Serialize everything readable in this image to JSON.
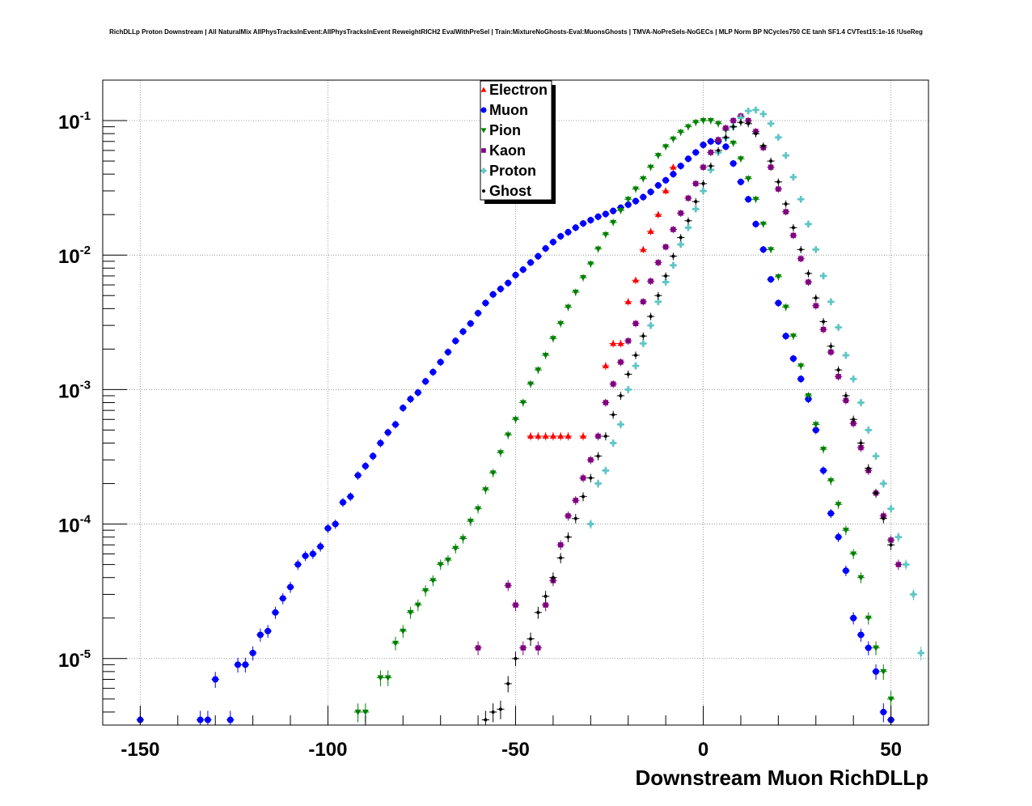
{
  "chart_data": {
    "type": "scatter",
    "title": "RichDLLp Proton Downstream | All NaturalMix AllPhysTracksInEvent:AllPhysTracksInEvent ReweightRICH2 EvalWithPreSel | Train:MixtureNoGhosts-Eval:MuonsGhosts | TMVA-NoPreSels-NoGECs | MLP Norm BP NCycles750 CE tanh SF1.4 CVTest15:1e-16 !UseReg",
    "xlabel": "Downstream Muon RichDLLp",
    "ylabel": "",
    "xlim": [
      -160,
      60
    ],
    "ylim": [
      3.2e-06,
      0.2
    ],
    "y_scale": "log",
    "grid": true,
    "legend_position": "top-center",
    "x_ticks": [
      {
        "value": -150,
        "label": "-150"
      },
      {
        "value": -100,
        "label": "-100"
      },
      {
        "value": -50,
        "label": "-50"
      },
      {
        "value": 0,
        "label": "0"
      },
      {
        "value": 50,
        "label": "50"
      }
    ],
    "y_ticks": [
      {
        "value": 1e-05,
        "base": "10",
        "exp": "-5"
      },
      {
        "value": 0.0001,
        "base": "10",
        "exp": "-4"
      },
      {
        "value": 0.001,
        "base": "10",
        "exp": "-3"
      },
      {
        "value": 0.01,
        "base": "10",
        "exp": "-2"
      },
      {
        "value": 0.1,
        "base": "10",
        "exp": "-1"
      }
    ],
    "series": [
      {
        "name": "Electron",
        "color": "#ff0000",
        "marker": "triangle-up",
        "x": [
          -46,
          -44,
          -42,
          -40,
          -38,
          -36,
          -32,
          -26,
          -24,
          -22,
          -20,
          -18,
          -16,
          -14,
          -12,
          -10,
          -8
        ],
        "y": [
          0.00045,
          0.00045,
          0.00045,
          0.00045,
          0.00045,
          0.00045,
          0.00045,
          0.0015,
          0.0022,
          0.0022,
          0.0045,
          0.0065,
          0.011,
          0.015,
          0.02,
          0.03,
          0.045
        ]
      },
      {
        "name": "Muon",
        "color": "#0000ff",
        "marker": "circle",
        "x": [
          -150,
          -134,
          -132,
          -130,
          -126,
          -124,
          -122,
          -120,
          -118,
          -116,
          -114,
          -112,
          -110,
          -108,
          -106,
          -104,
          -102,
          -100,
          -98,
          -96,
          -94,
          -92,
          -90,
          -88,
          -86,
          -84,
          -82,
          -80,
          -78,
          -76,
          -74,
          -72,
          -70,
          -68,
          -66,
          -64,
          -62,
          -60,
          -58,
          -56,
          -54,
          -52,
          -50,
          -48,
          -46,
          -44,
          -42,
          -40,
          -38,
          -36,
          -34,
          -32,
          -30,
          -28,
          -26,
          -24,
          -22,
          -20,
          -18,
          -16,
          -14,
          -12,
          -10,
          -8,
          -6,
          -4,
          -2,
          0,
          2,
          4,
          6,
          8,
          10,
          12,
          14,
          16,
          18,
          20,
          22,
          24,
          26,
          28,
          30,
          32,
          34,
          36,
          38,
          40,
          42,
          44,
          46,
          48,
          50
        ],
        "y": [
          3.5e-06,
          3.5e-06,
          3.5e-06,
          7e-06,
          3.5e-06,
          9e-06,
          9e-06,
          1.1e-05,
          1.5e-05,
          1.6e-05,
          2.2e-05,
          2.8e-05,
          3.4e-05,
          5e-05,
          5.8e-05,
          6e-05,
          6.8e-05,
          9.3e-05,
          0.0001,
          0.000145,
          0.00016,
          0.00023,
          0.00027,
          0.00032,
          0.0004,
          0.00048,
          0.00055,
          0.00073,
          0.00085,
          0.00095,
          0.00115,
          0.00135,
          0.0016,
          0.0019,
          0.0023,
          0.0027,
          0.0031,
          0.0037,
          0.0044,
          0.0051,
          0.0056,
          0.0062,
          0.0071,
          0.0078,
          0.0088,
          0.0098,
          0.0112,
          0.0125,
          0.0138,
          0.0148,
          0.016,
          0.0172,
          0.0182,
          0.0193,
          0.0202,
          0.0213,
          0.0225,
          0.0237,
          0.0252,
          0.027,
          0.0295,
          0.033,
          0.036,
          0.04,
          0.046,
          0.052,
          0.058,
          0.066,
          0.07,
          0.07,
          0.064,
          0.048,
          0.035,
          0.026,
          0.017,
          0.011,
          0.0066,
          0.0044,
          0.0025,
          0.0017,
          0.0012,
          0.00085,
          0.0005,
          0.00025,
          0.00012,
          8e-05,
          4.5e-05,
          2e-05,
          1.5e-05,
          1.2e-05,
          8e-06,
          4e-06,
          3.5e-06
        ]
      },
      {
        "name": "Pion",
        "color": "#008000",
        "marker": "triangle-down",
        "x": [
          -92,
          -90,
          -86,
          -84,
          -82,
          -80,
          -78,
          -76,
          -74,
          -72,
          -70,
          -68,
          -66,
          -64,
          -62,
          -60,
          -58,
          -56,
          -54,
          -52,
          -50,
          -48,
          -46,
          -44,
          -42,
          -40,
          -38,
          -36,
          -34,
          -32,
          -30,
          -28,
          -26,
          -24,
          -22,
          -20,
          -18,
          -16,
          -14,
          -12,
          -10,
          -8,
          -6,
          -4,
          -2,
          0,
          2,
          4,
          6,
          8,
          10,
          12,
          14,
          16,
          18,
          20,
          22,
          24,
          26,
          28,
          30,
          32,
          34,
          36,
          38,
          40,
          42,
          44,
          46,
          48,
          50
        ],
        "y": [
          4e-06,
          4e-06,
          7.2e-06,
          7.2e-06,
          1.3e-05,
          1.6e-05,
          2.2e-05,
          2.5e-05,
          3.2e-05,
          3.8e-05,
          5e-05,
          5.4e-05,
          6.6e-05,
          7.8e-05,
          0.000105,
          0.00013,
          0.00018,
          0.00024,
          0.00034,
          0.00046,
          0.0006,
          0.0008,
          0.0011,
          0.0014,
          0.0018,
          0.0024,
          0.0031,
          0.0041,
          0.0053,
          0.0068,
          0.0086,
          0.0111,
          0.0142,
          0.0175,
          0.0215,
          0.026,
          0.031,
          0.037,
          0.045,
          0.055,
          0.064,
          0.073,
          0.082,
          0.09,
          0.097,
          0.1,
          0.1,
          0.095,
          0.085,
          0.068,
          0.052,
          0.037,
          0.026,
          0.017,
          0.011,
          0.0069,
          0.0041,
          0.0025,
          0.0015,
          0.0009,
          0.00055,
          0.00036,
          0.00021,
          0.00014,
          9e-05,
          6e-05,
          4e-05,
          2e-05,
          1.2e-05,
          8e-06,
          5e-06
        ]
      },
      {
        "name": "Kaon",
        "color": "#800080",
        "marker": "square",
        "x": [
          -60,
          -52,
          -50,
          -48,
          -44,
          -42,
          -40,
          -38,
          -36,
          -34,
          -32,
          -30,
          -28,
          -26,
          -24,
          -22,
          -20,
          -18,
          -16,
          -14,
          -12,
          -10,
          -8,
          -6,
          -4,
          -2,
          0,
          2,
          4,
          6,
          8,
          10,
          12,
          14,
          16,
          18,
          20,
          22,
          24,
          26,
          28,
          30,
          32,
          34,
          36,
          38,
          40,
          42,
          44,
          46,
          48,
          50,
          52
        ],
        "y": [
          1.2e-05,
          3.5e-05,
          2.5e-05,
          1.2e-05,
          1.2e-05,
          2.5e-05,
          3.8e-05,
          7e-05,
          0.000115,
          0.00015,
          0.00022,
          0.0003,
          0.00045,
          0.0008,
          0.0011,
          0.0016,
          0.0023,
          0.0031,
          0.0045,
          0.0064,
          0.0088,
          0.0115,
          0.0155,
          0.0205,
          0.0265,
          0.034,
          0.045,
          0.058,
          0.072,
          0.088,
          0.1,
          0.108,
          0.1,
          0.083,
          0.063,
          0.045,
          0.031,
          0.021,
          0.014,
          0.0094,
          0.0063,
          0.0042,
          0.0028,
          0.0019,
          0.00125,
          0.00083,
          0.00056,
          0.00037,
          0.00025,
          0.00017,
          0.000115,
          7.6e-05,
          5e-05
        ]
      },
      {
        "name": "Proton",
        "color": "#5fc5c5",
        "marker": "cross",
        "x": [
          -30,
          -28,
          -26,
          -24,
          -22,
          -20,
          -18,
          -16,
          -14,
          -12,
          -10,
          -8,
          -6,
          -4,
          -2,
          0,
          2,
          4,
          6,
          8,
          10,
          12,
          14,
          16,
          18,
          20,
          22,
          24,
          26,
          28,
          30,
          32,
          34,
          36,
          38,
          40,
          42,
          44,
          46,
          48,
          50,
          52,
          54,
          56,
          58
        ],
        "y": [
          0.0001,
          0.0002,
          0.00025,
          0.0004,
          0.00055,
          0.001,
          0.0015,
          0.0022,
          0.003,
          0.0045,
          0.0063,
          0.0084,
          0.012,
          0.016,
          0.022,
          0.03,
          0.043,
          0.058,
          0.074,
          0.09,
          0.105,
          0.118,
          0.12,
          0.112,
          0.095,
          0.075,
          0.055,
          0.038,
          0.026,
          0.017,
          0.011,
          0.007,
          0.0045,
          0.0029,
          0.0018,
          0.0012,
          0.0008,
          0.0005,
          0.00032,
          0.0002,
          0.00013,
          8e-05,
          5e-05,
          3e-05,
          1.1e-05
        ]
      },
      {
        "name": "Ghost",
        "color": "#000000",
        "marker": "small-circle",
        "x": [
          -58,
          -56,
          -54,
          -52,
          -50,
          -46,
          -44,
          -42,
          -40,
          -38,
          -36,
          -34,
          -32,
          -30,
          -28,
          -26,
          -24,
          -22,
          -20,
          -18,
          -16,
          -14,
          -12,
          -10,
          -8,
          -6,
          -4,
          -2,
          0,
          2,
          4,
          6,
          8,
          10,
          12,
          14,
          16,
          18,
          20,
          22,
          24,
          26,
          28,
          30,
          32,
          34,
          36,
          38,
          40,
          42,
          44,
          46,
          48,
          50
        ],
        "y": [
          3.5e-06,
          4e-06,
          4.2e-06,
          6.5e-06,
          1e-05,
          1.4e-05,
          2.2e-05,
          2.9e-05,
          4e-05,
          5.6e-05,
          8e-05,
          0.00011,
          0.00016,
          0.00022,
          0.00032,
          0.00045,
          0.00065,
          0.0009,
          0.0013,
          0.0018,
          0.0025,
          0.0035,
          0.005,
          0.007,
          0.0098,
          0.0135,
          0.018,
          0.025,
          0.034,
          0.046,
          0.06,
          0.075,
          0.09,
          0.097,
          0.095,
          0.08,
          0.065,
          0.05,
          0.035,
          0.024,
          0.016,
          0.011,
          0.0073,
          0.0048,
          0.0032,
          0.0021,
          0.0014,
          0.0009,
          0.0006,
          0.0004,
          0.00026,
          0.00017,
          0.00011,
          7e-05
        ]
      }
    ]
  }
}
